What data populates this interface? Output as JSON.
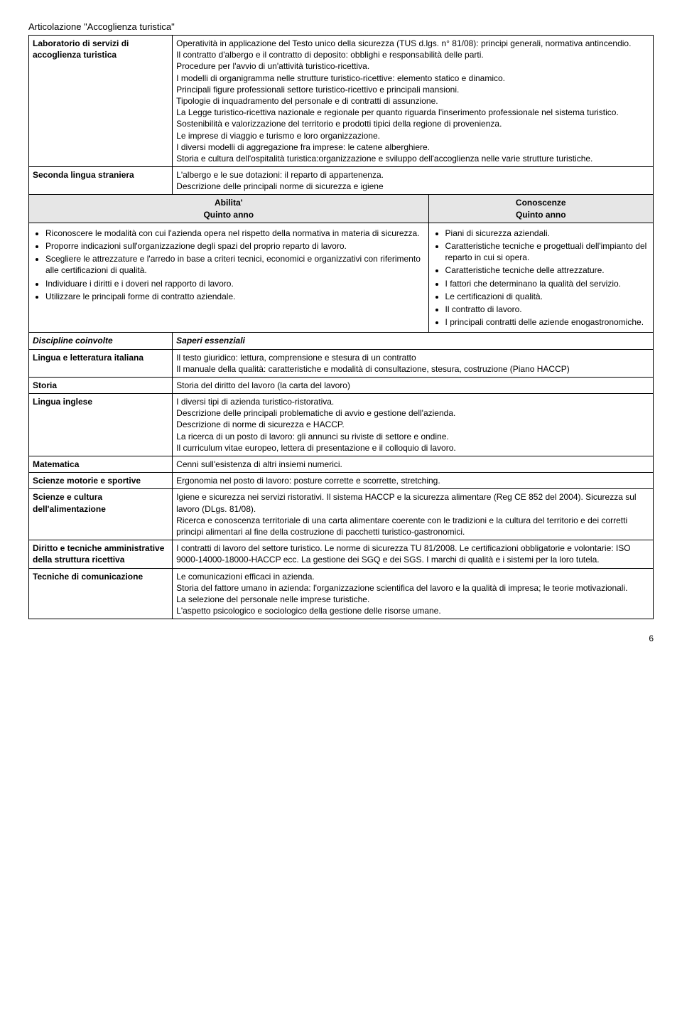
{
  "pageTitle": "Articolazione \"Accoglienza turistica\"",
  "rows": {
    "lab": {
      "label": "Laboratorio di servizi di accoglienza turistica",
      "content": "Operatività in applicazione del Testo unico della sicurezza (TUS d.lgs. n° 81/08): principi generali, normativa antincendio.\nIl contratto d'albergo e il contratto di deposito: obblighi e responsabilità delle parti.\nProcedure per l'avvio di un'attività turistico-ricettiva.\nI modelli di organigramma nelle strutture turistico-ricettive: elemento statico e dinamico.\nPrincipali figure professionali settore turistico-ricettivo e principali mansioni.\nTipologie di inquadramento del personale e di contratti di assunzione.\nLa Legge turistico-ricettiva nazionale e regionale per quanto riguarda l'inserimento professionale nel sistema turistico.\nSostenibilità e valorizzazione del territorio e prodotti tipici della regione di provenienza.\nLe imprese di viaggio e turismo e loro organizzazione.\nI diversi modelli di aggregazione fra imprese: le catene alberghiere.\nStoria e cultura dell'ospitalità turistica:organizzazione e sviluppo dell'accoglienza nelle varie strutture turistiche."
    },
    "seconda": {
      "label": "Seconda lingua straniera",
      "content": "L'albergo e le sue dotazioni: il reparto di appartenenza.\nDescrizione delle principali norme di sicurezza e igiene"
    },
    "header": {
      "left1": "Abilita'",
      "left2": "Quinto anno",
      "right1": "Conoscenze",
      "right2": "Quinto anno"
    },
    "abilita": [
      "Riconoscere le modalità con cui l'azienda opera nel rispetto della normativa in materia di sicurezza.",
      "Proporre indicazioni sull'organizzazione degli spazi del proprio reparto di lavoro.",
      "Scegliere le attrezzature e l'arredo in base a criteri tecnici, economici e organizzativi con riferimento alle certificazioni di qualità.",
      "Individuare i diritti e i doveri nel rapporto di lavoro.",
      "Utilizzare le principali forme di contratto aziendale."
    ],
    "conoscenze": [
      "Piani di sicurezza aziendali.",
      "Caratteristiche tecniche e progettuali dell'impianto del reparto in cui si opera.",
      "Caratteristiche tecniche delle attrezzature.",
      "I fattori che determinano la qualità del servizio.",
      "Le certificazioni di qualità.",
      "Il contratto di lavoro.",
      "I principali contratti delle aziende enogastronomiche."
    ],
    "discipline": {
      "label": "Discipline coinvolte",
      "right": "Saperi essenziali"
    },
    "lingua_it": {
      "label": "Lingua e letteratura italiana",
      "content": "Il testo giuridico: lettura, comprensione e stesura di un contratto\nIl manuale della qualità: caratteristiche e modalità di consultazione, stesura, costruzione (Piano HACCP)"
    },
    "storia": {
      "label": "Storia",
      "content": "Storia del diritto del lavoro (la carta del lavoro)"
    },
    "inglese": {
      "label": "Lingua inglese",
      "content": "I diversi tipi di azienda turistico-ristorativa.\nDescrizione delle principali problematiche di avvio e gestione dell'azienda.\nDescrizione di norme di sicurezza e HACCP.\nLa ricerca di un posto di lavoro: gli annunci su riviste di settore e ondine.\nIl curriculum vitae europeo, lettera di presentazione e il colloquio di lavoro."
    },
    "matematica": {
      "label": "Matematica",
      "content": "Cenni sull'esistenza di altri insiemi numerici."
    },
    "motorie": {
      "label": "Scienze motorie e sportive",
      "content": "Ergonomia nel posto di lavoro: posture corrette e scorrette, stretching."
    },
    "alimentazione": {
      "label": "Scienze e cultura dell'alimentazione",
      "content": "Igiene e sicurezza nei servizi ristorativi. Il sistema HACCP e la sicurezza alimentare (Reg CE 852 del 2004). Sicurezza sul lavoro (DLgs. 81/08).\nRicerca e conoscenza territoriale di una carta alimentare coerente con le tradizioni e la cultura del territorio e dei corretti principi alimentari al fine della costruzione di pacchetti turistico-gastronomici."
    },
    "diritto": {
      "label": "Diritto e tecniche amministrative della struttura ricettiva",
      "content": "I contratti di lavoro del settore turistico.  Le norme di sicurezza TU 81/2008.  Le certificazioni obbligatorie e volontarie: ISO 9000-14000-18000-HACCP ecc.  La gestione dei SGQ e dei SGS.  I marchi di qualità e i sistemi per la loro tutela."
    },
    "comunicazione": {
      "label": "Tecniche di comunicazione",
      "content": "Le comunicazioni efficaci in azienda.\nStoria del fattore umano in azienda: l'organizzazione scientifica del lavoro e la qualità di impresa; le teorie motivazionali.\nLa selezione del personale nelle imprese turistiche.\nL'aspetto psicologico e sociologico della gestione delle risorse umane."
    }
  },
  "pageNumber": "6"
}
